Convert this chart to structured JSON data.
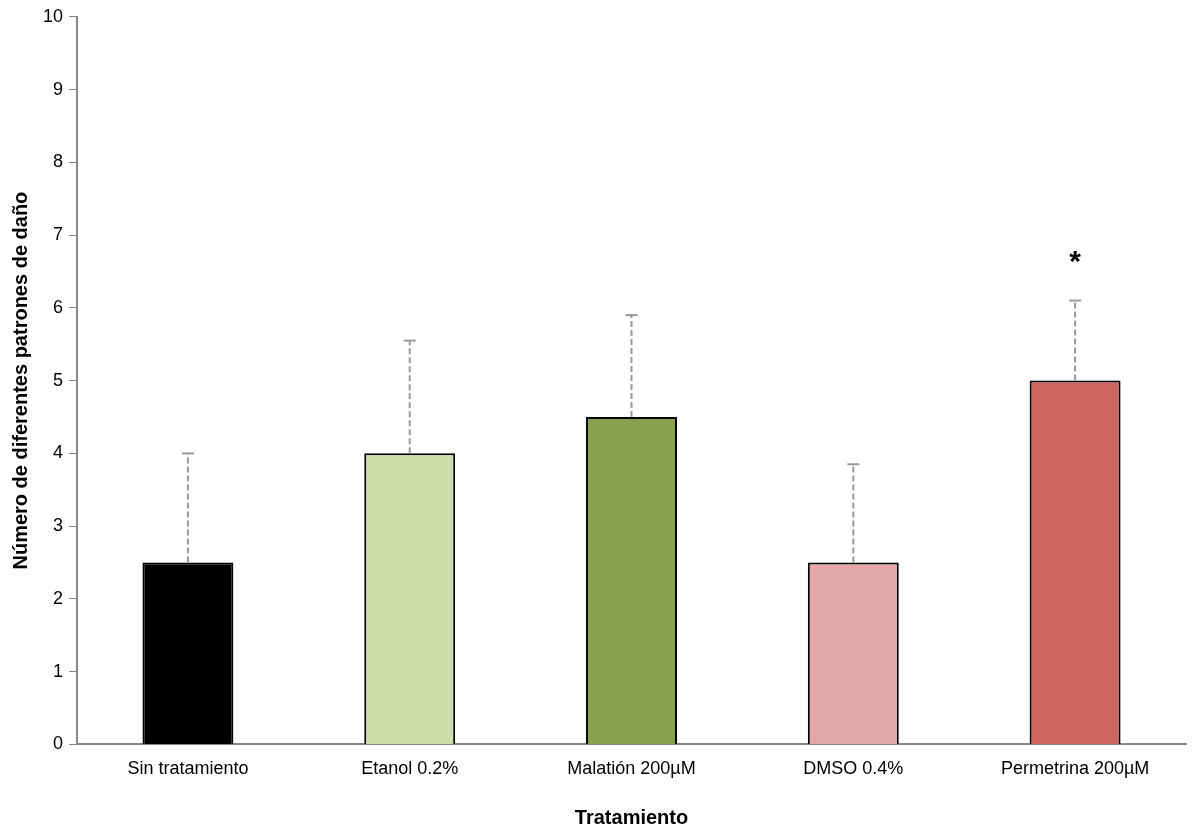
{
  "chart_data": {
    "type": "bar",
    "xlabel": "Tratamiento",
    "ylabel": "Número de diferentes patrones de daño",
    "categories": [
      "Sin tratamiento",
      "Etanol 0.2%",
      "Malatión 200µM",
      "DMSO 0.4%",
      "Permetrina 200µM"
    ],
    "values": [
      2.5,
      4.0,
      4.5,
      2.5,
      5.0
    ],
    "colors": [
      "#000000",
      "#cddca9",
      "#89a04c",
      "#e2a7a6",
      "#cd6560"
    ],
    "errors": [
      [
        2.5,
        4.0
      ],
      [
        4.0,
        5.55
      ],
      [
        4.5,
        5.9
      ],
      [
        2.5,
        3.85
      ],
      [
        5.0,
        6.1
      ]
    ],
    "ylim": [
      0,
      10
    ],
    "yticks": [
      0,
      1,
      2,
      3,
      4,
      5,
      6,
      7,
      8,
      9,
      10
    ],
    "grid": false,
    "legend": false,
    "annotations": [
      "*"
    ]
  }
}
